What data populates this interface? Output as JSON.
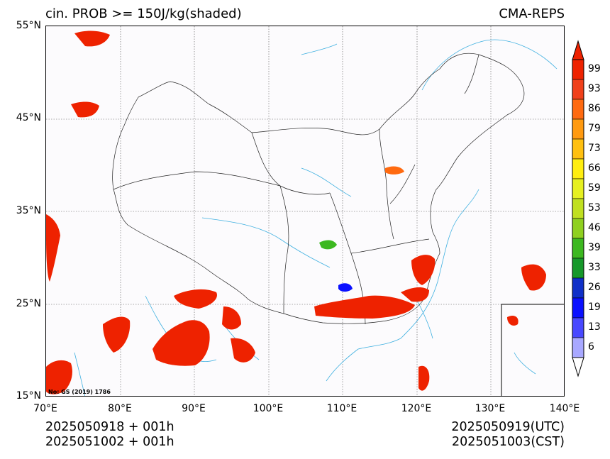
{
  "title": {
    "left": "cin. PROB >= 150J/kg(shaded)",
    "right": "CMA-REPS"
  },
  "map": {
    "lat_labels": [
      "55°N",
      "45°N",
      "35°N",
      "25°N",
      "15°N"
    ],
    "lon_labels": [
      "70°E",
      "80°E",
      "90°E",
      "100°E",
      "110°E",
      "120°E",
      "130°E",
      "140°E"
    ],
    "lat_range": [
      15,
      55
    ],
    "lon_range": [
      70,
      140
    ],
    "gridlines": true,
    "note": "No: GS (2019) 1786",
    "inset": "south-china-sea-inset"
  },
  "colorbar": {
    "labels": [
      "99",
      "93",
      "86",
      "79",
      "73",
      "66",
      "59",
      "53",
      "46",
      "39",
      "33",
      "26",
      "19",
      "13",
      "6"
    ],
    "colors": [
      "#ee2200",
      "#f0401a",
      "#ff6a10",
      "#ff9a10",
      "#ffc010",
      "#ffee10",
      "#e6f020",
      "#c0e020",
      "#8fd020",
      "#3cb820",
      "#16982a",
      "#1030c8",
      "#0a10ff",
      "#4848ff",
      "#a8a8ff"
    ],
    "extend_top_color": "#ee2200",
    "extend_bottom_color": "#ffffff"
  },
  "footer": {
    "left_line1": "2025050918  +  001h",
    "left_line2": "2025051002  +  001h",
    "right_line1": "2025050919(UTC)",
    "right_line2": "2025051003(CST)"
  }
}
